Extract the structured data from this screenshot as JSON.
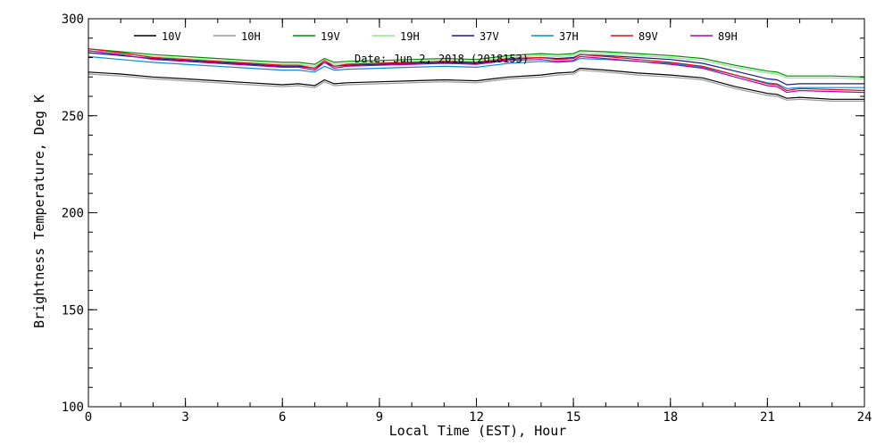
{
  "chart_data": {
    "type": "line",
    "xlabel": "Local Time (EST), Hour",
    "ylabel": "Brightness Temperature, Deg  K",
    "annotation": "Date: Jun  2, 2018 (2018153)",
    "xlim": [
      0,
      24
    ],
    "ylim": [
      100,
      300
    ],
    "x_ticks": [
      0,
      3,
      6,
      9,
      12,
      15,
      18,
      21,
      24
    ],
    "y_ticks": [
      100,
      150,
      200,
      250,
      300
    ],
    "x_minor_step": 1,
    "y_minor_step": 10,
    "grid": false,
    "legend_placement": "top",
    "x": [
      0,
      1,
      2,
      3,
      4,
      5,
      6,
      6.5,
      7,
      7.3,
      7.6,
      8,
      9,
      10,
      11,
      12,
      12.5,
      13,
      14,
      14.5,
      15,
      15.2,
      16,
      17,
      18,
      19,
      20,
      21,
      21.3,
      21.6,
      22,
      23,
      24
    ],
    "series": [
      {
        "name": "10V",
        "color": "#000000",
        "values": [
          272.5,
          271.5,
          270,
          269,
          268,
          267,
          266,
          266.5,
          265.5,
          268.5,
          266.5,
          267,
          267.5,
          268,
          268.5,
          268,
          269,
          270,
          271,
          272,
          272.5,
          274.5,
          273.5,
          272,
          271,
          269.5,
          265,
          261.5,
          261,
          259,
          259.5,
          258.5,
          258.5
        ]
      },
      {
        "name": "10H",
        "color": "#9a9a9a",
        "values": [
          271.5,
          270.5,
          269,
          268,
          267,
          266,
          265,
          265.5,
          264.5,
          267.5,
          265.5,
          266,
          266.5,
          267,
          267.5,
          267,
          268,
          269,
          270,
          271,
          271.5,
          273.5,
          272.5,
          271,
          270,
          268.5,
          264,
          260.5,
          260,
          258,
          258.5,
          257.5,
          257.5
        ]
      },
      {
        "name": "19V",
        "color": "#008a00",
        "values": [
          284.5,
          283,
          281.5,
          280.5,
          279.5,
          278.5,
          277.5,
          277.5,
          276.5,
          279.5,
          277.5,
          278,
          278.5,
          279,
          279.5,
          279,
          280,
          281,
          282,
          281.5,
          282,
          283.5,
          283,
          282,
          281,
          279.5,
          276,
          273,
          272.5,
          270.5,
          270.5,
          270.5,
          270
        ]
      },
      {
        "name": "19H",
        "color": "#88e888",
        "values": [
          283.5,
          282,
          280.5,
          279.5,
          278.5,
          277.5,
          276.5,
          276.5,
          275.5,
          278.5,
          276.5,
          277,
          277.5,
          278,
          278.5,
          278,
          279,
          280,
          281,
          280.5,
          281,
          282.5,
          282,
          281,
          280,
          278.5,
          275,
          272,
          271.5,
          269.5,
          269.5,
          269.5,
          269
        ]
      },
      {
        "name": "37V",
        "color": "#1a1a8c",
        "values": [
          282.5,
          281,
          279.5,
          278.5,
          277.5,
          276.5,
          275.5,
          275.5,
          274.5,
          277.5,
          275.5,
          276,
          276.5,
          277,
          277.5,
          277,
          278,
          279,
          280,
          279.5,
          280,
          281.5,
          281,
          280,
          279,
          277,
          273,
          269,
          268.5,
          266,
          266.5,
          266.5,
          266.5
        ]
      },
      {
        "name": "37H",
        "color": "#0a8ad8",
        "values": [
          280.5,
          279,
          277.5,
          276.5,
          275.5,
          274.5,
          273.5,
          273.5,
          272.5,
          275.5,
          273.5,
          274,
          274.5,
          275,
          275.5,
          275,
          276,
          277,
          278,
          277.5,
          278,
          279.5,
          279,
          278,
          277,
          275,
          271,
          267,
          266.5,
          264,
          264.5,
          264.5,
          264.5
        ]
      },
      {
        "name": "89V",
        "color": "#e01010",
        "values": [
          284.5,
          282.5,
          280,
          279,
          278,
          277,
          276,
          276,
          274.5,
          278.5,
          275.5,
          276.5,
          277,
          277.5,
          278,
          277.5,
          278.5,
          279.5,
          280,
          279,
          279.5,
          281.5,
          280.5,
          279,
          277.5,
          275.5,
          271,
          266.5,
          266,
          263,
          264,
          263.5,
          263
        ]
      },
      {
        "name": "89H",
        "color": "#b000b0",
        "values": [
          283.5,
          281.5,
          279,
          278,
          277,
          276,
          275,
          275,
          273.5,
          277.5,
          274.5,
          275.5,
          276,
          276.5,
          277,
          276.5,
          277.5,
          278.5,
          279,
          278,
          278.5,
          280.5,
          279.5,
          278,
          276.5,
          274.5,
          270,
          265.5,
          265,
          262,
          263,
          262.5,
          262
        ]
      }
    ]
  }
}
